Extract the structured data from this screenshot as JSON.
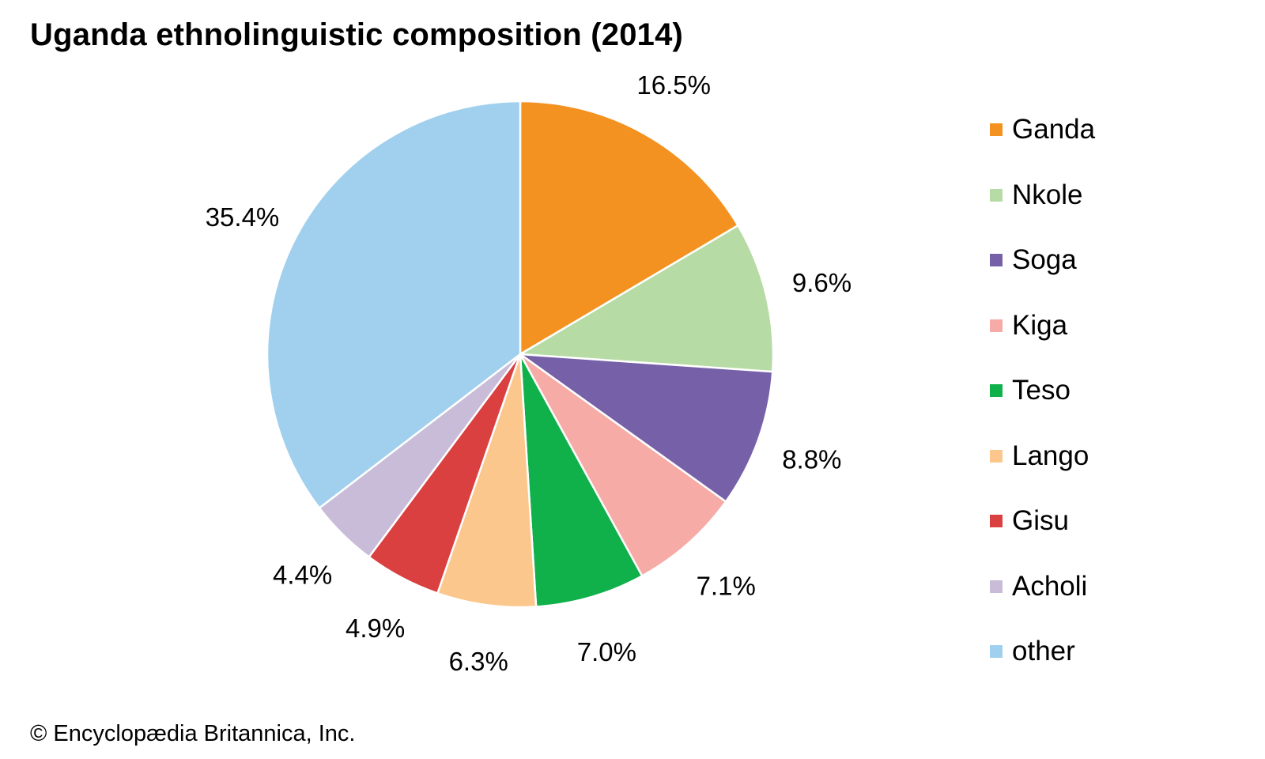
{
  "chart_data": {
    "type": "pie",
    "title": "Uganda ethnolinguistic composition (2014)",
    "categories": [
      "Ganda",
      "Nkole",
      "Soga",
      "Kiga",
      "Teso",
      "Lango",
      "Gisu",
      "Acholi",
      "other"
    ],
    "values": [
      16.5,
      9.6,
      8.8,
      7.1,
      7.0,
      6.3,
      4.9,
      4.4,
      35.4
    ],
    "value_labels": [
      "16.5%",
      "9.6%",
      "8.8%",
      "7.1%",
      "7.0%",
      "6.3%",
      "4.9%",
      "4.4%",
      "35.4%"
    ],
    "colors": [
      "#F39220",
      "#B7DBA5",
      "#7661A8",
      "#F6ABA6",
      "#10B04B",
      "#FCC78D",
      "#DA4040",
      "#C8BCD9",
      "#A0D0EE"
    ],
    "start_angle": "12 o'clock",
    "direction": "clockwise",
    "legend_position": "right"
  },
  "credit": "© Encyclopædia Britannica, Inc."
}
